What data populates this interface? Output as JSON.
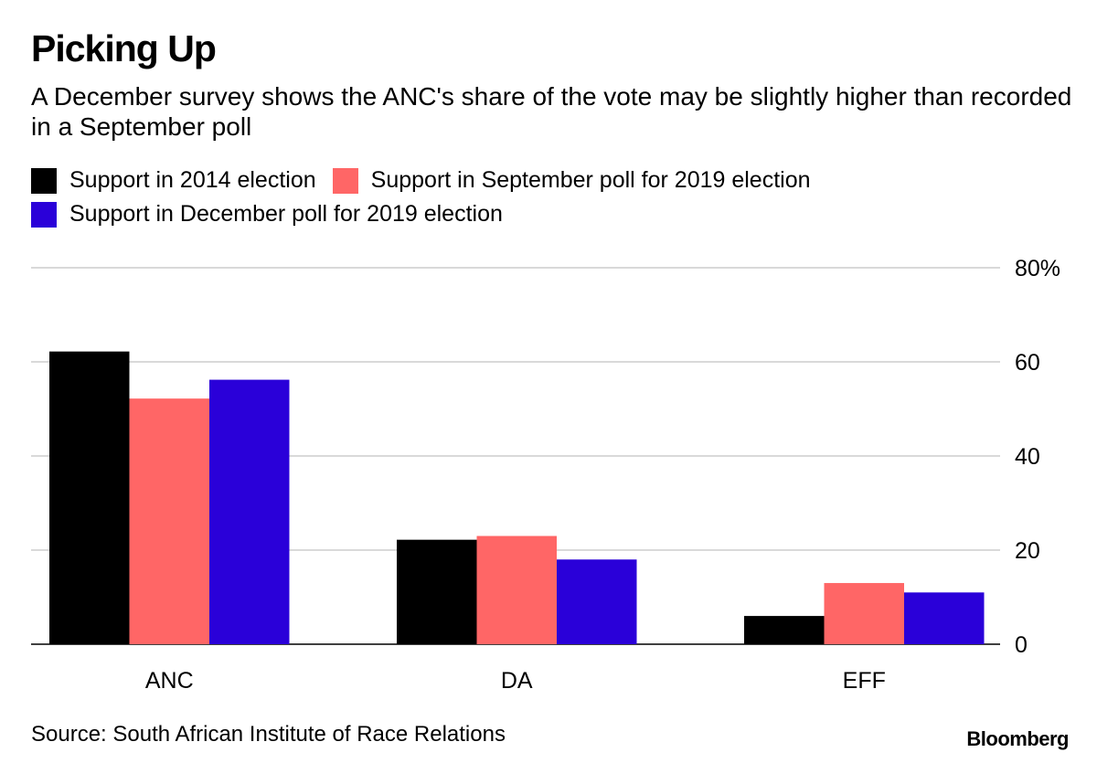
{
  "header": {
    "title": "Picking Up",
    "subtitle": "A December survey shows the ANC's share of the vote may be slightly higher than recorded in a September poll"
  },
  "footer": {
    "source": "Source: South African Institute of Race Relations",
    "brand": "Bloomberg"
  },
  "chart_data": {
    "type": "bar",
    "categories": [
      "ANC",
      "DA",
      "EFF"
    ],
    "series": [
      {
        "name": "Support in 2014 election",
        "color": "#000000",
        "values": [
          62.2,
          22.2,
          6.0
        ]
      },
      {
        "name": "Support in September poll for 2019 election",
        "color": "#ff6666",
        "values": [
          52.2,
          23.0,
          13.0
        ]
      },
      {
        "name": "Support in December poll for 2019 election",
        "color": "#2a00d9",
        "values": [
          56.2,
          18.0,
          11.0
        ]
      }
    ],
    "ylim": [
      0,
      80
    ],
    "yticks": [
      0,
      20,
      40,
      60,
      80
    ],
    "ytick_labels": [
      "0",
      "20",
      "40",
      "60",
      "80%"
    ],
    "grid": true,
    "legend_position": "top-left"
  }
}
